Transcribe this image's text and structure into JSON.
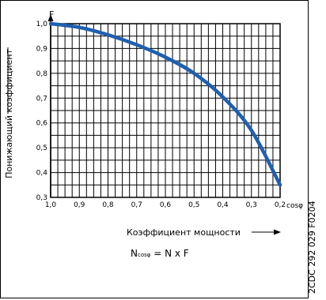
{
  "chart_data": {
    "type": "line",
    "y_axis_symbol": "F",
    "x_axis_symbol": "cosφ",
    "ylabel": "Понижающий коэффициент",
    "xlabel": "Коэффициент мощности",
    "xlim": [
      1.0,
      0.2
    ],
    "ylim": [
      0.3,
      1.0
    ],
    "x_reversed": true,
    "grid": true,
    "x_tick_labels": [
      "1,0",
      "0,9",
      "0,8",
      "0,7",
      "0,6",
      "0,5",
      "0,4",
      "0,3",
      "0,2"
    ],
    "y_tick_labels": [
      "0,3",
      "0,4",
      "0,5",
      "0,6",
      "0,7",
      "0,8",
      "0,9",
      "1,0"
    ],
    "series": [
      {
        "color": "#1f5fb0",
        "x": [
          1.0,
          0.9,
          0.8,
          0.7,
          0.6,
          0.5,
          0.4,
          0.3,
          0.2
        ],
        "y": [
          1.0,
          0.985,
          0.955,
          0.915,
          0.865,
          0.8,
          0.705,
          0.57,
          0.35
        ]
      }
    ]
  },
  "formula": {
    "lhs": "N",
    "lhs_sub": "cosφ",
    "rhs": " = N x F"
  },
  "doc_code": "2CDC 292 029 F0204"
}
